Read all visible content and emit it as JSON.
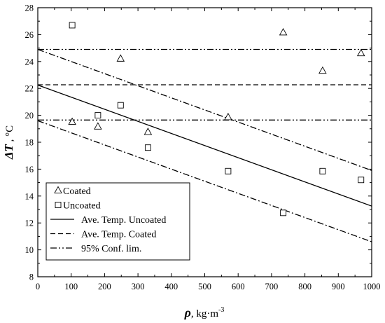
{
  "chart_data": {
    "type": "scatter",
    "xlabel": {
      "symbol": "ρ",
      "unit_prefix": ", kg·m",
      "unit_sup": "-3"
    },
    "ylabel": {
      "symbol": "ΔT",
      "unit": " , °C"
    },
    "xlim": [
      0,
      1000
    ],
    "ylim": [
      8,
      28
    ],
    "x_ticks": [
      0,
      100,
      200,
      300,
      400,
      500,
      600,
      700,
      800,
      900,
      1000
    ],
    "y_ticks": [
      8,
      10,
      12,
      14,
      16,
      18,
      20,
      22,
      24,
      26,
      28
    ],
    "grid": false,
    "legend_position": "bottom-left",
    "series": [
      {
        "name": "Coated",
        "kind": "points",
        "marker": "triangle",
        "x": [
          103,
          180,
          248,
          330,
          570,
          735,
          853,
          968
        ],
        "y": [
          19.5,
          19.15,
          24.2,
          18.75,
          19.85,
          26.15,
          23.3,
          24.6
        ]
      },
      {
        "name": "Uncoated",
        "kind": "points",
        "marker": "square",
        "x": [
          103,
          180,
          248,
          330,
          570,
          735,
          853,
          968
        ],
        "y": [
          26.7,
          20.0,
          20.75,
          17.6,
          15.85,
          12.75,
          15.85,
          15.2
        ]
      },
      {
        "name": "Ave. Temp. Uncoated",
        "kind": "line",
        "dash": "solid",
        "x": [
          0,
          1000
        ],
        "y": [
          22.25,
          13.25
        ]
      },
      {
        "name": "Ave. Temp. Coated",
        "kind": "line",
        "dash": "dashed",
        "x": [
          0,
          1000
        ],
        "y": [
          22.27,
          22.27
        ]
      },
      {
        "name": "95% Conf. lim.",
        "kind": "line",
        "dash": "dashdotdot",
        "x": [
          0,
          1000
        ],
        "y": [
          24.9,
          24.9
        ]
      },
      {
        "name": "",
        "kind": "line",
        "dash": "dashdotdot",
        "x": [
          0,
          1000
        ],
        "y": [
          19.65,
          19.65
        ]
      },
      {
        "name": "",
        "kind": "line",
        "dash": "dashdot",
        "x": [
          0,
          1000
        ],
        "y": [
          24.9,
          15.9
        ]
      },
      {
        "name": "",
        "kind": "line",
        "dash": "dashdot",
        "x": [
          0,
          1000
        ],
        "y": [
          19.6,
          10.6
        ]
      }
    ],
    "legend": [
      "Coated",
      "Uncoated",
      "Ave. Temp. Uncoated",
      "Ave. Temp. Coated",
      "95% Conf. lim."
    ]
  }
}
